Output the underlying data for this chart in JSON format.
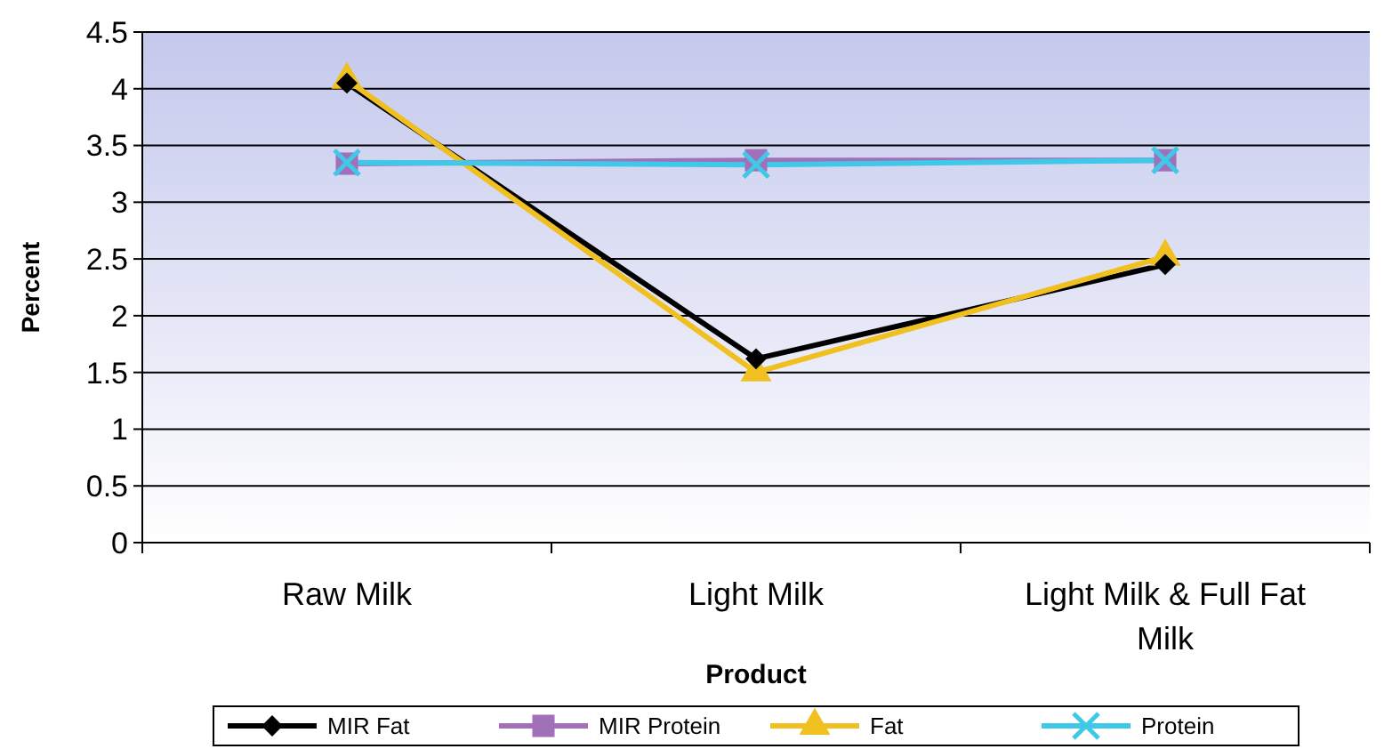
{
  "chart_data": {
    "type": "line",
    "xlabel": "Product",
    "ylabel": "Percent",
    "categories": [
      "Raw Milk",
      "Light Milk",
      "Light Milk & Full Fat Milk"
    ],
    "series": [
      {
        "name": "MIR Fat",
        "color": "#000000",
        "marker": "diamond",
        "values": [
          4.05,
          1.62,
          2.45
        ]
      },
      {
        "name": "MIR Protein",
        "color": "#a070b8",
        "marker": "square",
        "values": [
          3.34,
          3.37,
          3.37
        ]
      },
      {
        "name": "Fat",
        "color": "#f0c020",
        "marker": "triangle",
        "values": [
          4.08,
          1.5,
          2.52
        ]
      },
      {
        "name": "Protein",
        "color": "#40c8e8",
        "marker": "cross",
        "values": [
          3.35,
          3.33,
          3.37
        ]
      }
    ],
    "ylim": [
      0,
      4.5
    ],
    "yticks": [
      0,
      0.5,
      1,
      1.5,
      2,
      2.5,
      3,
      3.5,
      4,
      4.5
    ],
    "grid": "y",
    "legend": "bottom",
    "line_style": "solid"
  }
}
